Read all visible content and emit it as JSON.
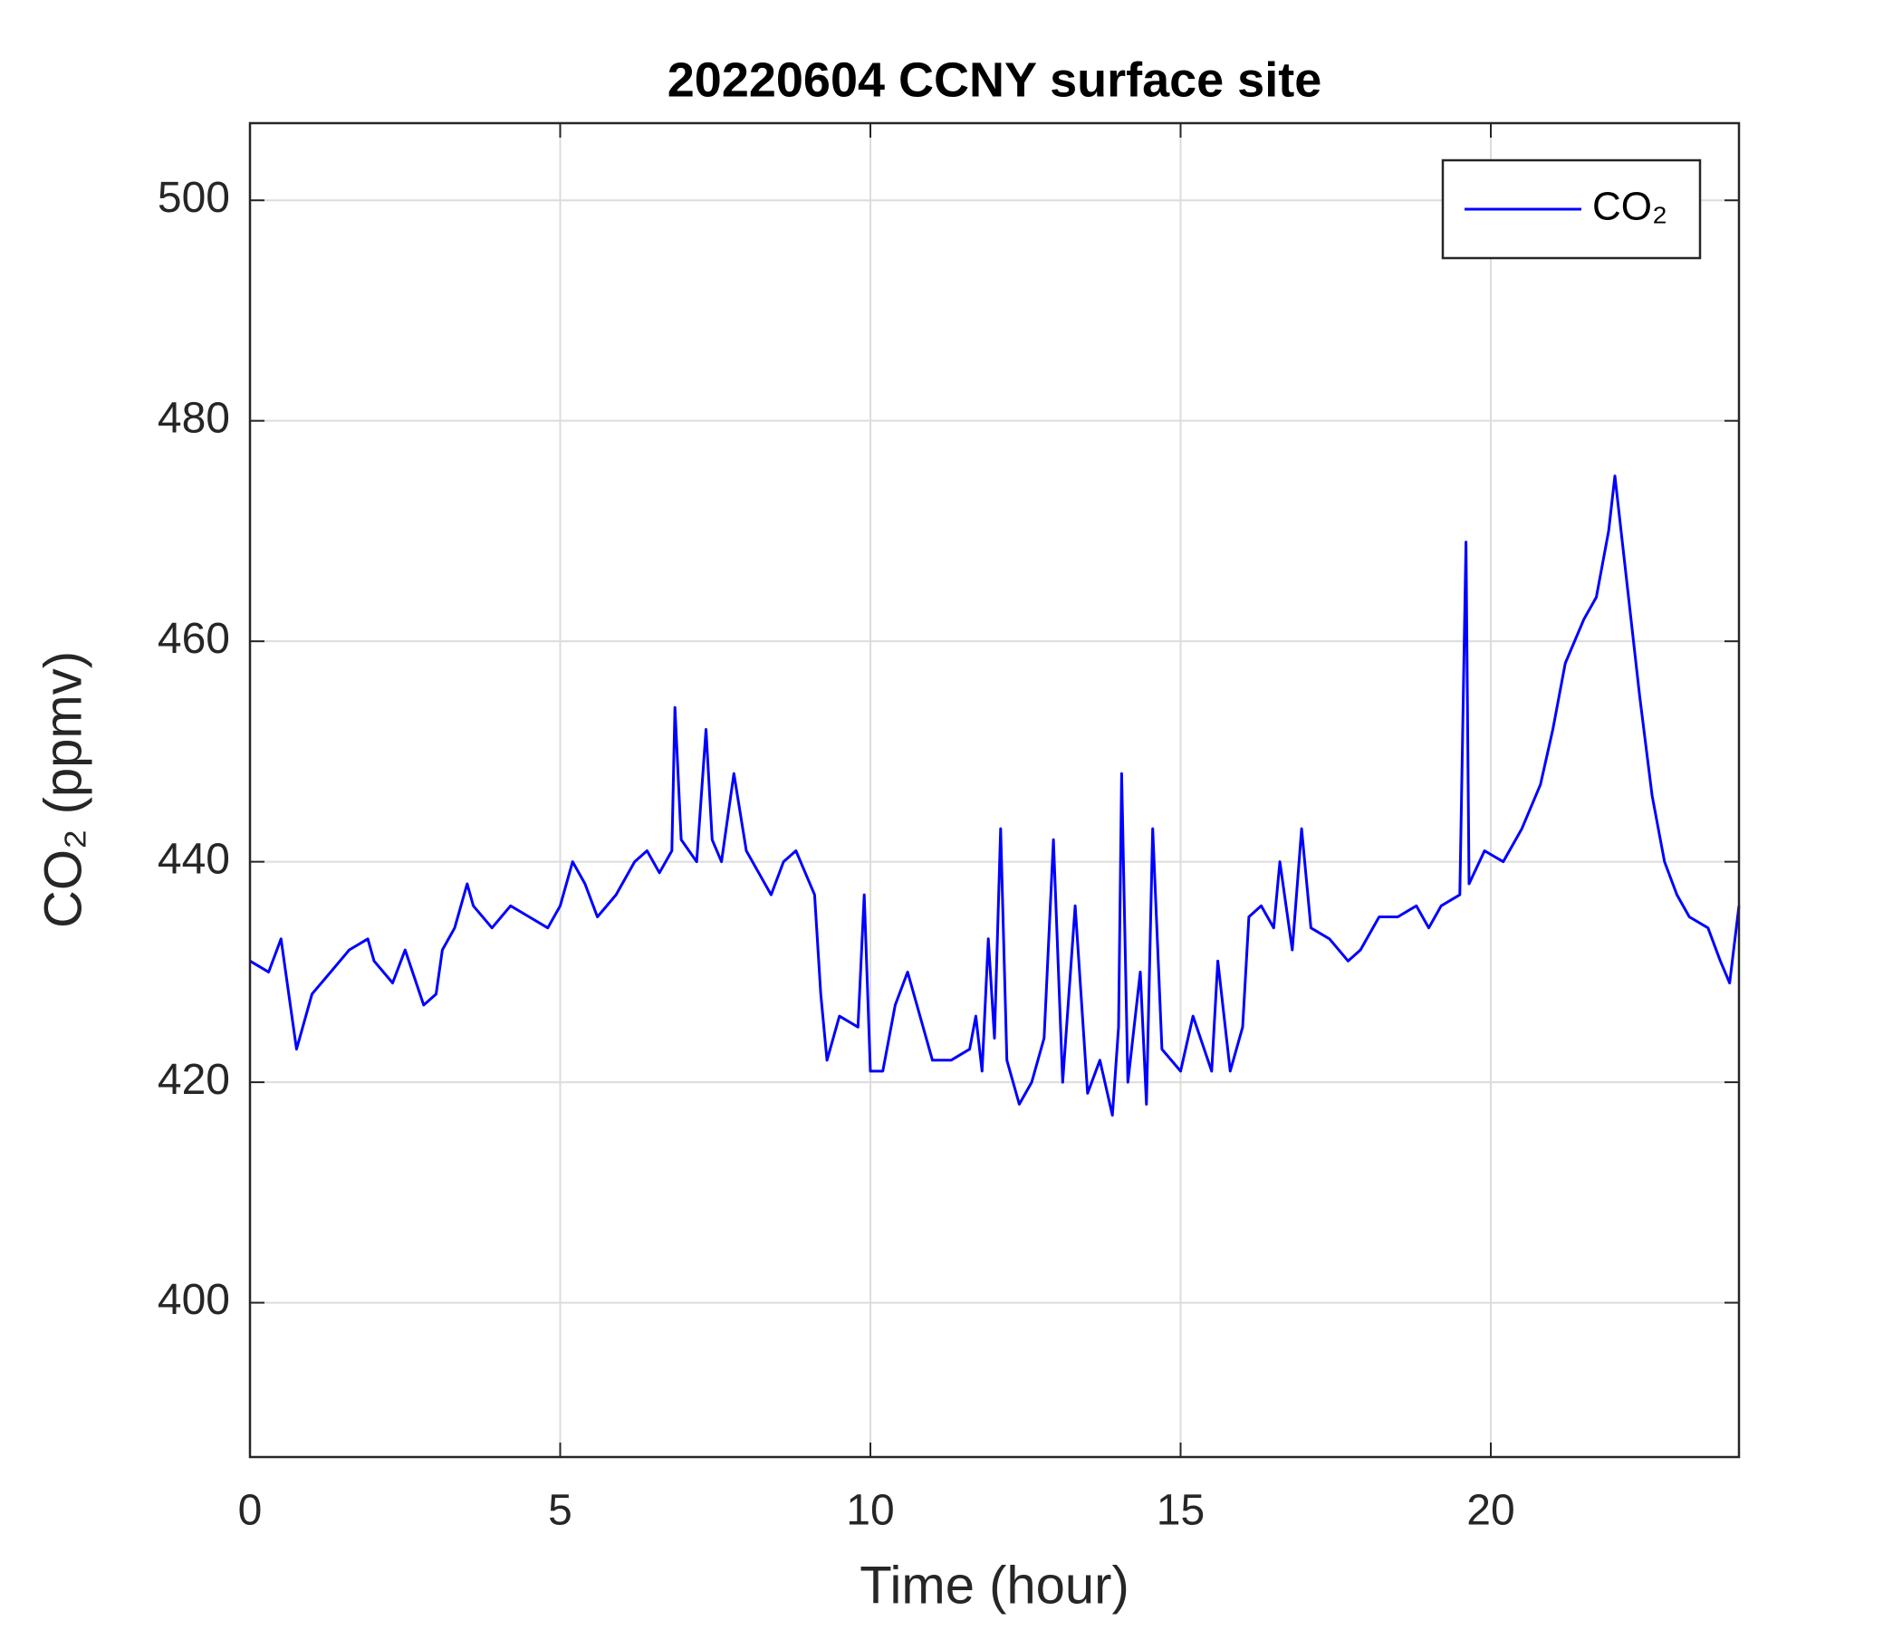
{
  "chart_data": {
    "type": "line",
    "title": "20220604 CCNY surface site",
    "x_label": "Time (hour)",
    "y_label": "CO₂ (ppmv)",
    "x": [
      0,
      0.3,
      0.5,
      0.6,
      0.75,
      1.0,
      1.3,
      1.6,
      1.9,
      2.0,
      2.3,
      2.5,
      2.8,
      3.0,
      3.1,
      3.3,
      3.5,
      3.6,
      3.9,
      4.2,
      4.5,
      4.8,
      5.0,
      5.2,
      5.4,
      5.6,
      5.9,
      6.2,
      6.4,
      6.6,
      6.8,
      6.85,
      6.95,
      7.2,
      7.35,
      7.45,
      7.6,
      7.8,
      8.0,
      8.2,
      8.4,
      8.6,
      8.8,
      8.95,
      9.1,
      9.2,
      9.3,
      9.5,
      9.8,
      9.9,
      10.0,
      10.2,
      10.4,
      10.6,
      10.8,
      11.0,
      11.3,
      11.6,
      11.7,
      11.8,
      11.9,
      12.0,
      12.1,
      12.2,
      12.4,
      12.6,
      12.8,
      12.95,
      13.1,
      13.3,
      13.5,
      13.7,
      13.9,
      14.0,
      14.05,
      14.15,
      14.35,
      14.45,
      14.55,
      14.7,
      15.0,
      15.2,
      15.5,
      15.6,
      15.8,
      16.0,
      16.1,
      16.3,
      16.5,
      16.6,
      16.8,
      16.95,
      17.1,
      17.4,
      17.7,
      17.9,
      18.2,
      18.5,
      18.8,
      19.0,
      19.2,
      19.5,
      19.6,
      19.65,
      19.9,
      20.2,
      20.5,
      20.8,
      21.0,
      21.2,
      21.5,
      21.7,
      21.9,
      22.0,
      22.2,
      22.4,
      22.6,
      22.8,
      23.0,
      23.2,
      23.5,
      23.7,
      23.85,
      24.0
    ],
    "series": [
      {
        "name": "CO₂",
        "color": "#0000ff",
        "values": [
          431,
          430,
          433,
          429,
          423,
          428,
          430,
          432,
          433,
          431,
          429,
          432,
          427,
          428,
          432,
          434,
          438,
          436,
          434,
          436,
          435,
          434,
          436,
          440,
          438,
          435,
          437,
          440,
          441,
          439,
          441,
          454,
          442,
          440,
          452,
          442,
          440,
          448,
          441,
          439,
          437,
          440,
          441,
          439,
          437,
          428,
          422,
          426,
          425,
          437,
          421,
          421,
          427,
          430,
          426,
          422,
          422,
          423,
          426,
          421,
          433,
          424,
          443,
          422,
          418,
          420,
          424,
          442,
          420,
          436,
          419,
          422,
          417,
          425,
          448,
          420,
          430,
          418,
          443,
          423,
          421,
          426,
          421,
          431,
          421,
          425,
          435,
          436,
          434,
          440,
          432,
          443,
          434,
          433,
          431,
          432,
          435,
          435,
          436,
          434,
          436,
          437,
          469,
          438,
          441,
          440,
          443,
          447,
          452,
          458,
          462,
          464,
          470,
          475,
          465,
          455,
          446,
          440,
          437,
          435,
          434,
          431,
          429,
          436
        ]
      }
    ],
    "xlim": [
      0,
      24
    ],
    "ylim": [
      386,
      507
    ],
    "xticks": [
      0,
      5,
      10,
      15,
      20
    ],
    "yticks": [
      400,
      420,
      440,
      460,
      480,
      500
    ],
    "grid": true,
    "legend": "northeast"
  }
}
